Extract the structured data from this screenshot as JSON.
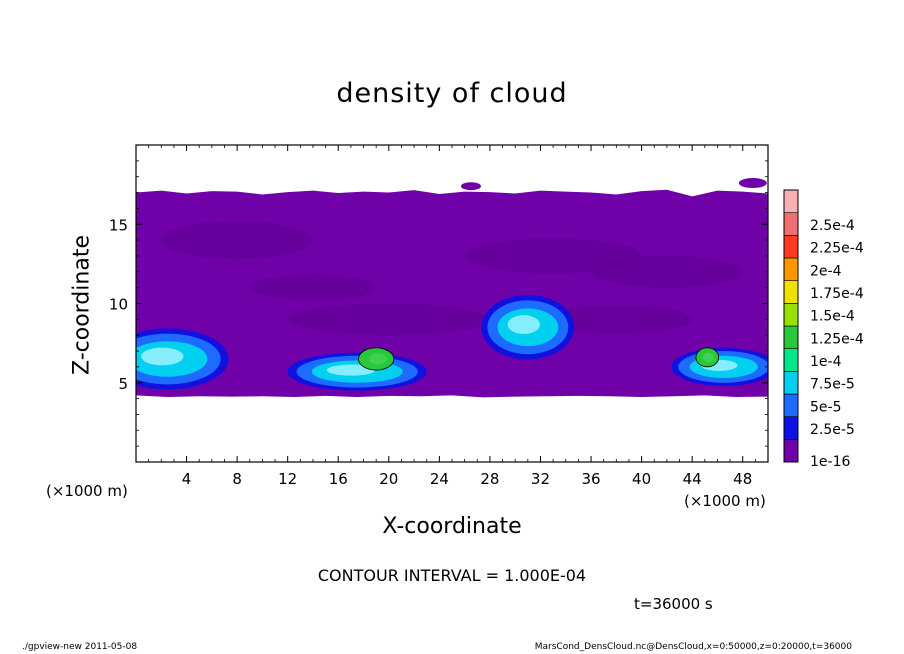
{
  "chart_data": {
    "type": "heatmap",
    "title": "density of cloud",
    "xlabel": "X-coordinate",
    "ylabel": "Z-coordinate",
    "x_unit": "(×1000 m)",
    "xlim": [
      0,
      50
    ],
    "ylim": [
      0,
      20
    ],
    "x_ticks": [
      4,
      8,
      12,
      16,
      20,
      24,
      28,
      32,
      36,
      40,
      44,
      48
    ],
    "y_ticks": [
      5,
      10,
      15
    ],
    "colorbar": {
      "labels": [
        "1e-16",
        "2.5e-5",
        "5e-5",
        "7.5e-5",
        "1e-4",
        "1.25e-4",
        "1.5e-4",
        "1.75e-4",
        "2e-4",
        "2.25e-4",
        "2.5e-4"
      ],
      "colors": [
        "#7000a8",
        "#1010e0",
        "#1e6cff",
        "#00d0f0",
        "#00e88c",
        "#28c83c",
        "#9ae000",
        "#f0e000",
        "#ff9800",
        "#ff3a20",
        "#f07070",
        "#f8b0b0"
      ]
    },
    "cloud_layer": {
      "z_bottom": 4.2,
      "z_top": 17
    },
    "dense_regions": [
      {
        "x_center": 2.5,
        "z_center": 6.5,
        "level": "7.5e-5"
      },
      {
        "x_center": 17.5,
        "z_center": 5.7,
        "level": "7.5e-5"
      },
      {
        "x_center": 19.0,
        "z_center": 6.5,
        "level": "1e-4"
      },
      {
        "x_center": 31.0,
        "z_center": 8.5,
        "level": "7.5e-5"
      },
      {
        "x_center": 46.5,
        "z_center": 6.0,
        "level": "7.5e-5"
      },
      {
        "x_center": 45.2,
        "z_center": 6.6,
        "level": "1e-4"
      }
    ]
  },
  "annotations": {
    "contour_interval": "CONTOUR INTERVAL = 1.000E-04",
    "time": "t=36000 s"
  },
  "footer": {
    "left": "./gpview-new   2011-05-08",
    "right": "MarsCond_DensCloud.nc@DensCloud,x=0:50000,z=0:20000,t=36000"
  }
}
